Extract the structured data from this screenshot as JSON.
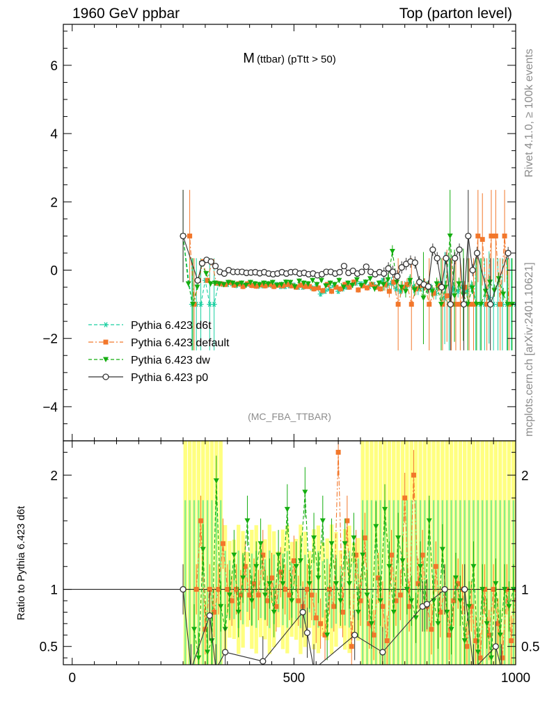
{
  "header": {
    "left": "1960 GeV ppbar",
    "right": "Top (parton level)"
  },
  "side_labels": {
    "rivet": "Rivet 4.1.0, ≥ 100k events",
    "mcplots": "mcplots.cern.ch [arXiv:2401.10621]"
  },
  "ratio_ylabel": "Ratio to Pythia 6.423 d6t",
  "colors": {
    "d6t": "#19cfa0",
    "default": "#f2772b",
    "dw": "#13ad0f",
    "p0": "#333333",
    "band_yellow": "#ffff80",
    "band_green": "#88ee88",
    "watermark": "#8c8c8c"
  },
  "chart_data": [
    {
      "type": "line",
      "panel": "main",
      "title": "M",
      "title_sub": "(ttbar) (pTtt > 50)",
      "watermark": "(MC_FBA_TTBAR)",
      "xlim": [
        -20,
        1000
      ],
      "ylim": [
        -5,
        7.2
      ],
      "yticks": [
        -4,
        -2,
        0,
        2,
        4,
        6
      ],
      "ytick_labels": [
        "−4",
        "−2",
        "0",
        "2",
        "4",
        "6"
      ],
      "legend_position": "lower-left",
      "series": [
        {
          "name": "Pythia 6.423 d6t",
          "key": "d6t",
          "marker": "star",
          "dash": "dash",
          "x": [
            250,
            270,
            280,
            290,
            300,
            310,
            320,
            330,
            340,
            350,
            360,
            370,
            380,
            390,
            400,
            410,
            420,
            430,
            440,
            450,
            460,
            470,
            480,
            490,
            500,
            510,
            520,
            530,
            540,
            550,
            560,
            570,
            580,
            590,
            600,
            610,
            620,
            630,
            640,
            650,
            660,
            670,
            680,
            690,
            700,
            710,
            720,
            730,
            740,
            750,
            760,
            770,
            780,
            790,
            800,
            810,
            820,
            830,
            840,
            850,
            860,
            870,
            880,
            890,
            900,
            910,
            920,
            930,
            940,
            950,
            960,
            970,
            980,
            990,
            1000
          ],
          "y": [
            1.0,
            -1.0,
            -1.0,
            -1.0,
            -0.3,
            -1.0,
            -1.0,
            -0.4,
            -0.42,
            -0.42,
            -0.4,
            -0.45,
            -0.42,
            -0.44,
            -0.42,
            -0.45,
            -0.47,
            -0.46,
            -0.44,
            -0.45,
            -0.42,
            -0.48,
            -0.48,
            -0.46,
            -0.44,
            -0.5,
            -0.5,
            -0.46,
            -0.52,
            -0.48,
            -0.7,
            -0.62,
            -0.55,
            -0.45,
            -0.62,
            -0.55,
            -0.5,
            -0.45,
            -0.38,
            -0.4,
            -0.35,
            -0.48,
            -0.42,
            -0.5,
            -0.3,
            -0.44,
            -0.38,
            -0.55,
            -0.62,
            -0.5,
            -0.35,
            -0.5,
            -0.55,
            -0.48,
            -0.5,
            -0.58,
            -0.68,
            -0.4,
            -0.82,
            -1.0,
            -0.52,
            -0.62,
            -0.5,
            -0.62,
            -0.48,
            -1.0,
            -1.0,
            -1.0,
            -0.8,
            -1.0,
            -1.0,
            -1.0,
            -1.0,
            -1.0,
            -1.0
          ]
        },
        {
          "name": "Pythia 6.423 default",
          "key": "default",
          "marker": "square",
          "dash": "dashdot",
          "x": [
            250,
            265,
            275,
            285,
            295,
            305,
            315,
            325,
            335,
            345,
            355,
            365,
            375,
            385,
            395,
            405,
            415,
            425,
            435,
            445,
            455,
            465,
            475,
            485,
            495,
            505,
            515,
            525,
            535,
            545,
            555,
            565,
            575,
            585,
            595,
            605,
            615,
            625,
            635,
            645,
            655,
            665,
            675,
            685,
            695,
            705,
            715,
            725,
            735,
            745,
            755,
            765,
            775,
            785,
            795,
            805,
            815,
            825,
            835,
            845,
            855,
            865,
            875,
            885,
            895,
            905,
            915,
            925,
            935,
            945,
            955,
            965,
            975,
            985
          ],
          "y": [
            1.0,
            1.0,
            -1.0,
            -0.3,
            0.25,
            -0.3,
            0.25,
            -0.38,
            -0.4,
            -0.42,
            -0.36,
            -0.44,
            -0.4,
            -0.48,
            -0.4,
            -0.45,
            -0.47,
            -0.43,
            -0.46,
            -0.42,
            -0.48,
            -0.44,
            -0.46,
            -0.42,
            -0.46,
            -0.5,
            -0.44,
            -0.48,
            -0.48,
            -0.55,
            -0.52,
            -0.6,
            -0.42,
            -0.62,
            -0.5,
            -0.55,
            -0.42,
            -0.5,
            -0.35,
            -0.58,
            -0.46,
            -0.52,
            -0.42,
            -0.5,
            -0.55,
            -0.42,
            -0.62,
            -0.35,
            -1.0,
            -0.5,
            -0.42,
            -1.0,
            -0.55,
            -0.45,
            -0.42,
            -1.0,
            -0.68,
            -0.45,
            -1.0,
            -0.75,
            -1.0,
            -1.0,
            -1.0,
            -0.5,
            -1.0,
            -1.0,
            1.0,
            0.9,
            -1.0,
            1.0,
            1.0,
            -1.0,
            1.0,
            -1.0
          ]
        },
        {
          "name": "Pythia 6.423 dw",
          "key": "dw",
          "marker": "triangle-down",
          "dash": "dash",
          "x": [
            250,
            262,
            272,
            282,
            292,
            302,
            312,
            322,
            332,
            342,
            352,
            362,
            372,
            382,
            392,
            402,
            412,
            422,
            432,
            442,
            452,
            462,
            472,
            482,
            492,
            502,
            512,
            522,
            532,
            542,
            552,
            562,
            572,
            582,
            592,
            602,
            612,
            622,
            632,
            642,
            652,
            662,
            672,
            682,
            692,
            702,
            712,
            722,
            732,
            742,
            752,
            762,
            772,
            782,
            792,
            802,
            812,
            822,
            832,
            842,
            852,
            862,
            872,
            882,
            892,
            902,
            912,
            922,
            932,
            942,
            952,
            962,
            972,
            982,
            992
          ],
          "y": [
            1.0,
            -0.4,
            -1.0,
            -0.5,
            0.2,
            -0.1,
            -0.4,
            -0.38,
            -0.4,
            -0.42,
            -0.36,
            -0.38,
            -0.42,
            -0.38,
            -0.44,
            -0.36,
            -0.4,
            -0.42,
            -0.38,
            -0.4,
            -0.36,
            -0.44,
            -0.42,
            -0.35,
            -0.36,
            -0.48,
            -0.32,
            -0.38,
            -0.4,
            -0.3,
            -0.42,
            -0.3,
            -0.46,
            -0.38,
            -0.42,
            -0.3,
            -0.5,
            -0.38,
            -0.44,
            -0.28,
            -0.45,
            -0.35,
            -0.25,
            -0.55,
            -0.38,
            -0.42,
            -0.28,
            0.55,
            -0.35,
            -0.5,
            -0.62,
            -0.3,
            -0.58,
            -0.4,
            -0.82,
            -0.52,
            -0.62,
            -0.4,
            -1.0,
            -0.5,
            1.0,
            -0.75,
            -0.4,
            -0.72,
            -1.0,
            -0.52,
            -1.0,
            -1.0,
            -0.62,
            -0.35,
            -0.6,
            -0.25,
            -0.7,
            -1.0,
            -1.0
          ]
        },
        {
          "name": "Pythia 6.423 p0",
          "key": "p0",
          "marker": "circle-open",
          "dash": "solid",
          "x": [
            250,
            283,
            293,
            303,
            313,
            323,
            333,
            343,
            353,
            363,
            373,
            383,
            393,
            403,
            413,
            423,
            433,
            443,
            453,
            463,
            473,
            483,
            493,
            503,
            513,
            523,
            533,
            543,
            553,
            563,
            573,
            583,
            593,
            603,
            613,
            623,
            633,
            643,
            653,
            663,
            673,
            683,
            693,
            703,
            713,
            723,
            733,
            743,
            753,
            763,
            773,
            783,
            793,
            803,
            813,
            823,
            833,
            843,
            853,
            863,
            873,
            883,
            893,
            903,
            913,
            943,
            983
          ],
          "y": [
            1.0,
            -0.3,
            0.2,
            0.3,
            0.25,
            0.12,
            -0.05,
            -0.1,
            0.0,
            -0.05,
            -0.05,
            -0.05,
            -0.08,
            -0.07,
            -0.06,
            -0.09,
            -0.06,
            -0.1,
            -0.12,
            -0.1,
            -0.06,
            -0.1,
            -0.06,
            -0.05,
            -0.1,
            -0.08,
            -0.12,
            -0.1,
            -0.15,
            -0.12,
            -0.05,
            -0.05,
            -0.1,
            -0.06,
            0.12,
            -0.08,
            -0.02,
            -0.1,
            -0.05,
            0.1,
            -0.05,
            -0.12,
            -0.06,
            -0.1,
            0.05,
            -0.05,
            -0.18,
            0.08,
            0.18,
            0.25,
            0.22,
            -0.35,
            -0.42,
            -0.48,
            0.6,
            0.35,
            -0.5,
            0.35,
            -1.0,
            0.35,
            0.6,
            -1.0,
            1.0,
            0.0,
            0.5,
            -1.0,
            0.5
          ]
        }
      ]
    },
    {
      "type": "line",
      "panel": "ratio",
      "ylabel": "Ratio to Pythia 6.423 d6t",
      "xlim": [
        -20,
        1000
      ],
      "ylim": [
        0.34,
        2.3
      ],
      "xticks": [
        0,
        500,
        1000
      ],
      "xtick_labels": [
        "0",
        "500",
        "1000"
      ],
      "yticks": [
        0.5,
        1,
        2
      ],
      "ytick_labels": [
        "0.5",
        "1",
        "2"
      ],
      "reference": 1.0,
      "series": [
        {
          "name": "Pythia 6.423 d6t",
          "key": "d6t",
          "values_note": "reference",
          "x": [
            250,
            1000
          ],
          "y": [
            1.0,
            1.0
          ]
        },
        {
          "name": "Pythia 6.423 default",
          "key": "default",
          "x": [
            280,
            290,
            300,
            310,
            320,
            330,
            340,
            350,
            360,
            370,
            380,
            390,
            400,
            410,
            420,
            430,
            440,
            450,
            460,
            470,
            480,
            490,
            500,
            510,
            520,
            530,
            540,
            550,
            560,
            570,
            580,
            590,
            600,
            610,
            620,
            630,
            640,
            650,
            660,
            670,
            680,
            690,
            700,
            710,
            720,
            730,
            740,
            750,
            760,
            770,
            780,
            790,
            800,
            810,
            820,
            830,
            840,
            850,
            860,
            870,
            880,
            890,
            900,
            910,
            920,
            930,
            940,
            950,
            960,
            970,
            980,
            990,
            1000
          ],
          "y": [
            1.0,
            1.6,
            0.65,
            1.0,
            0.8,
            1.0,
            1.4,
            1.0,
            0.9,
            1.0,
            0.95,
            1.2,
            0.95,
            1.05,
            0.95,
            1.3,
            0.9,
            1.1,
            0.85,
            1.15,
            1.0,
            0.95,
            1.25,
            0.9,
            0.85,
            1.0,
            0.95,
            0.75,
            0.7,
            0.6,
            1.0,
            0.85,
            2.2,
            0.8,
            1.6,
            0.5,
            1.3,
            0.9,
            1.45,
            0.7,
            0.6,
            1.1,
            0.85,
            0.55,
            1.3,
            0.9,
            0.95,
            1.8,
            0.85,
            2.0,
            1.05,
            1.3,
            0.85,
            0.65,
            1.2,
            0.8,
            1.0,
            0.6,
            0.9,
            1.05,
            1.0,
            0.5,
            0.85,
            0.55,
            0.4,
            1.0,
            0.6,
            1.0,
            0.7,
            0.4,
            1.0,
            0.55,
            1.0
          ]
        },
        {
          "name": "Pythia 6.423 dw",
          "key": "dw",
          "x": [
            275,
            285,
            295,
            305,
            315,
            325,
            335,
            345,
            355,
            365,
            375,
            385,
            395,
            405,
            415,
            425,
            435,
            445,
            455,
            465,
            475,
            485,
            495,
            505,
            515,
            525,
            535,
            545,
            555,
            565,
            575,
            585,
            595,
            605,
            615,
            625,
            635,
            645,
            655,
            665,
            675,
            685,
            695,
            705,
            715,
            725,
            735,
            745,
            755,
            765,
            775,
            785,
            795,
            805,
            815,
            825,
            835,
            845,
            855,
            865,
            875,
            885,
            895,
            905,
            915,
            925,
            935,
            945,
            955,
            965,
            975,
            985,
            995
          ],
          "y": [
            0.65,
            0.4,
            1.35,
            0.45,
            0.55,
            1.95,
            0.85,
            0.65,
            0.95,
            1.3,
            0.8,
            1.1,
            1.6,
            0.9,
            1.2,
            1.4,
            0.95,
            1.05,
            0.8,
            1.3,
            1.05,
            1.7,
            0.9,
            1.2,
            1.25,
            1.85,
            1.05,
            1.45,
            1.1,
            1.6,
            0.6,
            1.4,
            1.05,
            0.9,
            1.4,
            1.05,
            1.45,
            0.8,
            1.3,
            0.95,
            0.7,
            1.55,
            0.9,
            1.7,
            1.2,
            0.8,
            1.45,
            1.25,
            1.0,
            0.9,
            0.75,
            1.2,
            0.85,
            1.6,
            0.9,
            0.7,
            1.35,
            0.8,
            0.65,
            1.1,
            0.9,
            0.55,
            0.85,
            1.2,
            0.45,
            1.0,
            0.7,
            0.4,
            1.05,
            0.6,
            1.0,
            0.85,
            1.0
          ]
        },
        {
          "name": "Pythia 6.423 p0",
          "key": "p0",
          "x": [
            250,
            268,
            310,
            324,
            345,
            430,
            520,
            530,
            545,
            637,
            700,
            790,
            800,
            840,
            885,
            905,
            955,
            968
          ],
          "y": [
            1.0,
            0.3,
            0.77,
            0.3,
            0.45,
            0.37,
            0.8,
            0.62,
            0.3,
            0.6,
            0.45,
            0.85,
            0.87,
            1.0,
            1.0,
            0.3,
            0.5,
            0.3
          ]
        }
      ]
    }
  ]
}
